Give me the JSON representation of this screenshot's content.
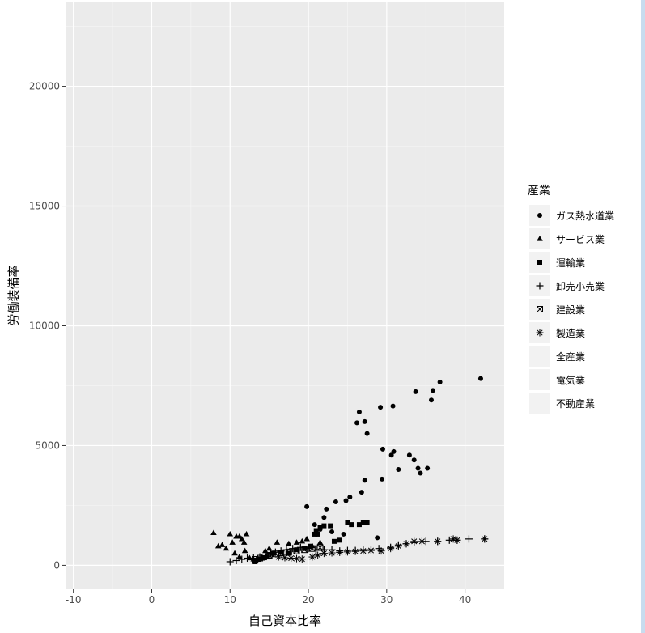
{
  "chart_data": {
    "type": "scatter",
    "title": "",
    "xlabel": "自己資本比率",
    "ylabel": "労働装備率",
    "xlim": [
      -11,
      45
    ],
    "ylim": [
      -1000,
      23500
    ],
    "xticks": [
      -10,
      0,
      10,
      20,
      30,
      40
    ],
    "yticks": [
      0,
      5000,
      10000,
      15000,
      20000
    ],
    "grid": true,
    "legend": {
      "title": "産業",
      "position": "right",
      "entries": [
        {
          "name": "ガス熱水道業",
          "shape": "circle"
        },
        {
          "name": "サービス業",
          "shape": "triangle"
        },
        {
          "name": "運輸業",
          "shape": "square"
        },
        {
          "name": "卸売小売業",
          "shape": "plus"
        },
        {
          "name": "建設業",
          "shape": "boxed-x"
        },
        {
          "name": "製造業",
          "shape": "asterisk"
        },
        {
          "name": "全産業",
          "shape": "none"
        },
        {
          "name": "電気業",
          "shape": "none"
        },
        {
          "name": "不動産業",
          "shape": "none"
        }
      ]
    },
    "series": [
      {
        "name": "ガス熱水道業",
        "shape": "circle",
        "points": [
          [
            19.8,
            2450
          ],
          [
            20.8,
            1700
          ],
          [
            21.5,
            1500
          ],
          [
            22,
            2000
          ],
          [
            22.3,
            2350
          ],
          [
            23.5,
            2650
          ],
          [
            24.8,
            2700
          ],
          [
            25.3,
            2850
          ],
          [
            26.2,
            5950
          ],
          [
            26.5,
            6400
          ],
          [
            27.2,
            6000
          ],
          [
            27.5,
            5500
          ],
          [
            26.8,
            3050
          ],
          [
            27.2,
            3550
          ],
          [
            28.8,
            1150
          ],
          [
            29.2,
            6600
          ],
          [
            29.5,
            4850
          ],
          [
            29.4,
            3600
          ],
          [
            30.8,
            6650
          ],
          [
            30.6,
            4600
          ],
          [
            30.9,
            4750
          ],
          [
            31.5,
            4000
          ],
          [
            32.9,
            4600
          ],
          [
            33.5,
            4400
          ],
          [
            33.7,
            7250
          ],
          [
            34,
            4050
          ],
          [
            34.3,
            3850
          ],
          [
            35.2,
            4050
          ],
          [
            35.7,
            6900
          ],
          [
            35.9,
            7300
          ],
          [
            36.8,
            7650
          ],
          [
            42,
            7800
          ],
          [
            23,
            1400
          ],
          [
            24.5,
            1300
          ]
        ]
      },
      {
        "name": "サービス業",
        "shape": "triangle",
        "points": [
          [
            7.9,
            1350
          ],
          [
            8.5,
            800
          ],
          [
            9,
            850
          ],
          [
            9.5,
            700
          ],
          [
            10,
            1300
          ],
          [
            10.3,
            950
          ],
          [
            10.8,
            1200
          ],
          [
            11.2,
            1200
          ],
          [
            11.5,
            1100
          ],
          [
            11.8,
            950
          ],
          [
            12.1,
            1300
          ],
          [
            10.6,
            500
          ],
          [
            11.2,
            350
          ],
          [
            12.5,
            300
          ],
          [
            13,
            250
          ],
          [
            14.5,
            600
          ],
          [
            15,
            700
          ],
          [
            16,
            950
          ],
          [
            17.5,
            900
          ],
          [
            18.5,
            950
          ],
          [
            19.2,
            1000
          ],
          [
            19.8,
            1100
          ],
          [
            20.5,
            800
          ],
          [
            21.5,
            950
          ],
          [
            11.9,
            600
          ]
        ]
      },
      {
        "name": "運輸業",
        "shape": "square",
        "points": [
          [
            13.2,
            150
          ],
          [
            13.6,
            250
          ],
          [
            14.2,
            300
          ],
          [
            14.8,
            350
          ],
          [
            15.5,
            500
          ],
          [
            16.5,
            550
          ],
          [
            17.5,
            500
          ],
          [
            18.5,
            650
          ],
          [
            19.5,
            700
          ],
          [
            20.3,
            800
          ],
          [
            20.8,
            1300
          ],
          [
            21,
            1450
          ],
          [
            21.5,
            1600
          ],
          [
            22,
            1650
          ],
          [
            22.8,
            1650
          ],
          [
            23.3,
            1000
          ],
          [
            24,
            1050
          ],
          [
            25,
            1800
          ],
          [
            25.5,
            1700
          ],
          [
            26.5,
            1700
          ],
          [
            27,
            1800
          ],
          [
            27.5,
            1800
          ],
          [
            21.2,
            1300
          ]
        ]
      },
      {
        "name": "卸売小売業",
        "shape": "plus",
        "points": [
          [
            10,
            150
          ],
          [
            10.8,
            200
          ],
          [
            11.5,
            250
          ],
          [
            12.2,
            300
          ],
          [
            13,
            300
          ],
          [
            13.8,
            350
          ],
          [
            14.5,
            400
          ],
          [
            15.2,
            500
          ],
          [
            15.8,
            550
          ],
          [
            16.5,
            600
          ],
          [
            17.2,
            650
          ],
          [
            18,
            700
          ],
          [
            19,
            750
          ],
          [
            20,
            700
          ],
          [
            21,
            650
          ],
          [
            22,
            650
          ],
          [
            23,
            650
          ],
          [
            24,
            600
          ],
          [
            25,
            620
          ],
          [
            26,
            620
          ],
          [
            27,
            650
          ],
          [
            28,
            650
          ],
          [
            29,
            700
          ],
          [
            30.5,
            750
          ],
          [
            31.5,
            850
          ],
          [
            32.5,
            900
          ],
          [
            33.5,
            950
          ],
          [
            35,
            1000
          ],
          [
            36.5,
            1000
          ],
          [
            38,
            1050
          ],
          [
            39,
            1050
          ],
          [
            40.5,
            1100
          ],
          [
            42.5,
            1100
          ]
        ]
      },
      {
        "name": "建設業",
        "shape": "boxed-x",
        "points": [
          [
            13.2,
            250
          ],
          [
            13.8,
            300
          ],
          [
            14.3,
            350
          ],
          [
            15,
            420
          ],
          [
            15.8,
            480
          ],
          [
            16.5,
            520
          ],
          [
            17.5,
            560
          ],
          [
            18.5,
            600
          ],
          [
            19.5,
            650
          ],
          [
            20.5,
            700
          ],
          [
            21.5,
            740
          ]
        ]
      },
      {
        "name": "製造業",
        "shape": "asterisk",
        "points": [
          [
            16.2,
            350
          ],
          [
            17,
            320
          ],
          [
            17.8,
            300
          ],
          [
            18.5,
            280
          ],
          [
            19.2,
            260
          ],
          [
            20.5,
            350
          ],
          [
            21.2,
            420
          ],
          [
            22,
            500
          ],
          [
            23,
            520
          ],
          [
            24,
            540
          ],
          [
            25,
            560
          ],
          [
            26,
            580
          ],
          [
            27,
            600
          ],
          [
            28,
            620
          ],
          [
            29.3,
            600
          ],
          [
            30.5,
            700
          ],
          [
            31.5,
            800
          ],
          [
            32.5,
            900
          ],
          [
            33.5,
            1000
          ],
          [
            34.5,
            1000
          ],
          [
            36.5,
            1000
          ],
          [
            38.5,
            1100
          ],
          [
            39,
            1050
          ],
          [
            42.5,
            1100
          ]
        ]
      }
    ]
  }
}
